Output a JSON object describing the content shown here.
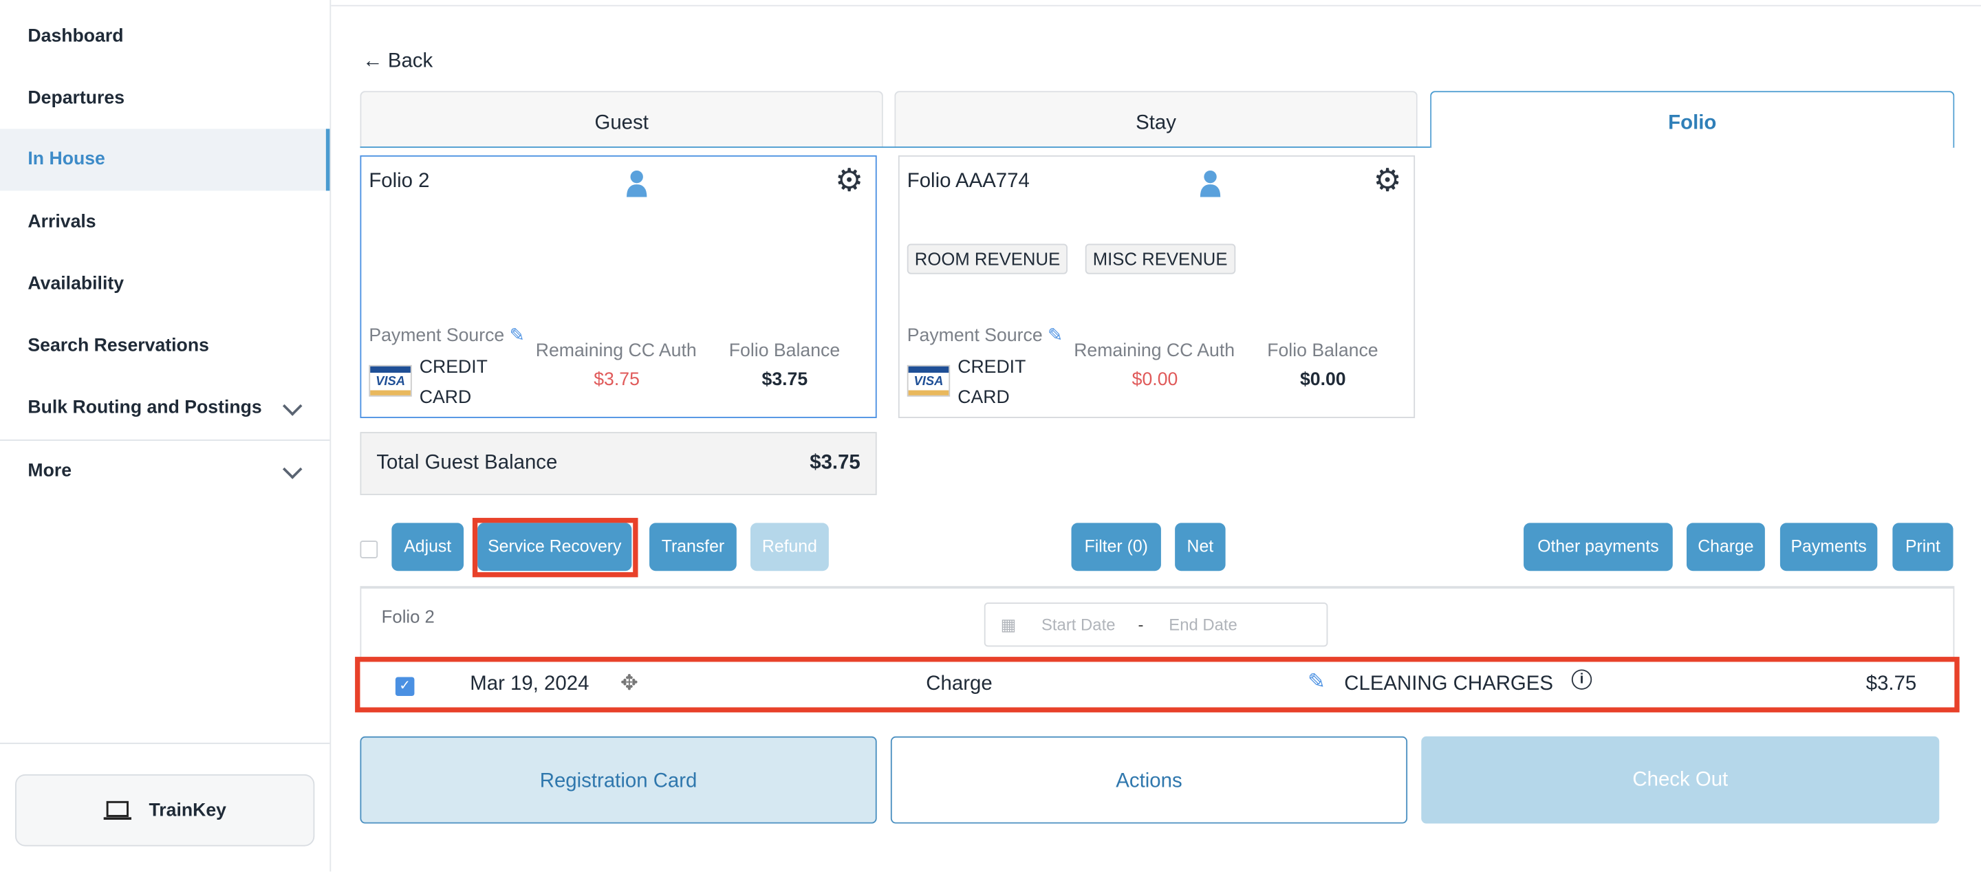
{
  "sidebar": {
    "items": [
      {
        "label": "Dashboard"
      },
      {
        "label": "Departures"
      },
      {
        "label": "In House"
      },
      {
        "label": "Arrivals"
      },
      {
        "label": "Availability"
      },
      {
        "label": "Search Reservations"
      },
      {
        "label": "Bulk Routing and Postings"
      },
      {
        "label": "More"
      }
    ],
    "selected": "In House",
    "trainkey": "TrainKey"
  },
  "back": "Back",
  "tabs": [
    {
      "label": "Guest"
    },
    {
      "label": "Stay"
    },
    {
      "label": "Folio"
    }
  ],
  "active_tab": "Folio",
  "folios": [
    {
      "title": "Folio 2",
      "tags": [],
      "payment_source_label": "Payment Source",
      "payment_line1": "CREDIT",
      "payment_line2": "CARD",
      "card_brand": "VISA",
      "remaining_label": "Remaining CC Auth",
      "remaining": "$3.75",
      "balance_label": "Folio Balance",
      "balance": "$3.75"
    },
    {
      "title": "Folio AAA774",
      "tags": [
        "ROOM REVENUE",
        "MISC REVENUE"
      ],
      "payment_source_label": "Payment Source",
      "payment_line1": "CREDIT",
      "payment_line2": "CARD",
      "card_brand": "VISA",
      "remaining_label": "Remaining CC Auth",
      "remaining": "$0.00",
      "balance_label": "Folio Balance",
      "balance": "$0.00"
    }
  ],
  "total": {
    "label": "Total Guest Balance",
    "value": "$3.75"
  },
  "toolbar": {
    "adjust": "Adjust",
    "service_recovery": "Service Recovery",
    "transfer": "Transfer",
    "refund": "Refund",
    "filter": "Filter (0)",
    "net": "Net",
    "other_payments": "Other payments",
    "charge": "Charge",
    "payments": "Payments",
    "print": "Print"
  },
  "ledger": {
    "folio": "Folio 2",
    "start_placeholder": "Start Date",
    "separator": "-",
    "end_placeholder": "End Date",
    "rows": [
      {
        "checked": true,
        "date": "Mar 19, 2024",
        "type": "Charge",
        "description": "CLEANING CHARGES",
        "amount": "$3.75"
      }
    ]
  },
  "footer": {
    "registration": "Registration Card",
    "actions": "Actions",
    "checkout": "Check Out"
  },
  "colors": {
    "accent": "#4a9acb",
    "highlight": "#e8412a",
    "negative": "#e05a5a"
  }
}
